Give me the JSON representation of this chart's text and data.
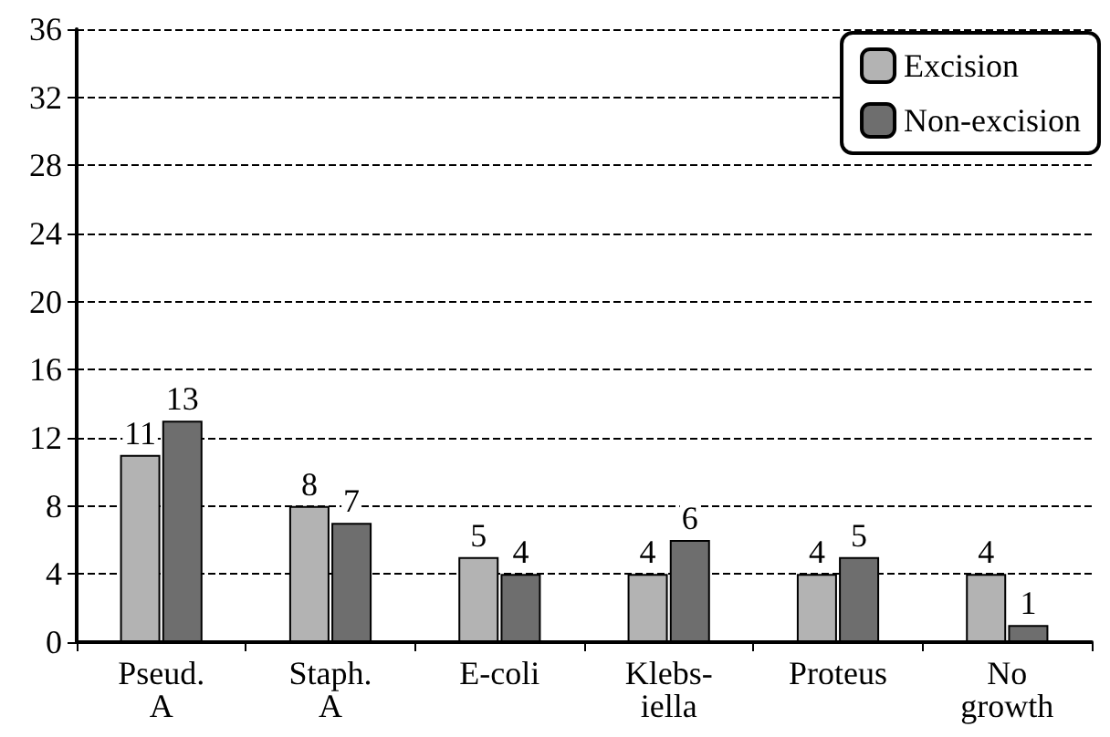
{
  "chart_data": {
    "type": "bar",
    "categories": [
      "Pseud.\nA",
      "Staph.\nA",
      "E-coli",
      "Klebs-\niella",
      "Proteus",
      "No\ngrowth"
    ],
    "series": [
      {
        "name": "Excision",
        "color": "#b3b3b3",
        "values": [
          11,
          8,
          5,
          4,
          4,
          4
        ]
      },
      {
        "name": "Non-excision",
        "color": "#6e6e6e",
        "values": [
          13,
          7,
          4,
          6,
          5,
          1
        ]
      }
    ],
    "ylim": [
      0,
      36
    ],
    "yticks": [
      0,
      4,
      8,
      12,
      16,
      20,
      24,
      28,
      32,
      36
    ],
    "grid": "y",
    "legend": "top right",
    "data_labels": true
  }
}
